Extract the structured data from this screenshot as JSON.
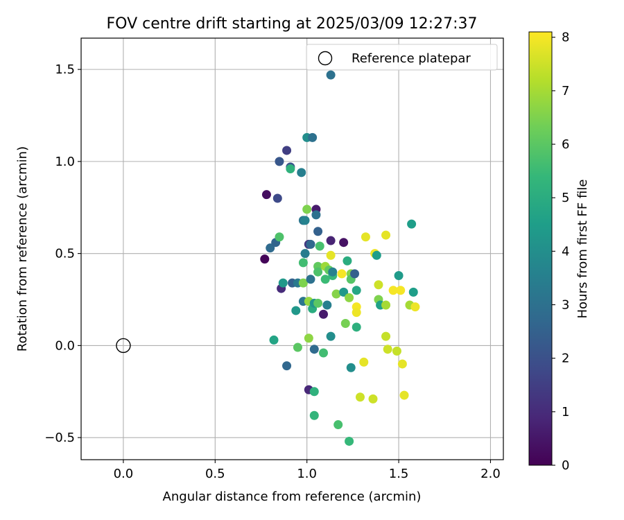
{
  "chart_data": {
    "type": "scatter",
    "title": "FOV centre drift starting at 2025/03/09 12:27:37",
    "xlabel": "Angular distance from reference (arcmin)",
    "ylabel": "Rotation from reference (arcmin)",
    "xlim": [
      -0.23,
      2.07
    ],
    "ylim": [
      -0.62,
      1.67
    ],
    "xticks": [
      0.0,
      0.5,
      1.0,
      1.5,
      2.0
    ],
    "xtick_labels": [
      "0.0",
      "0.5",
      "1.0",
      "1.5",
      "2.0"
    ],
    "yticks": [
      -0.5,
      0.0,
      0.5,
      1.0,
      1.5
    ],
    "ytick_labels": [
      "−0.5",
      "0.0",
      "0.5",
      "1.0",
      "1.5"
    ],
    "grid": true,
    "legend": {
      "position": "top-right",
      "entries": [
        "Reference platepar"
      ]
    },
    "reference_point": {
      "x": 0.0,
      "y": 0.0,
      "marker": "open-circle"
    },
    "colorbar": {
      "label": "Hours from first FF file",
      "min": 0,
      "max": 8.1,
      "ticks": [
        0,
        1,
        2,
        3,
        4,
        5,
        6,
        7,
        8
      ],
      "tick_labels": [
        "0",
        "1",
        "2",
        "3",
        "4",
        "5",
        "6",
        "7",
        "8"
      ],
      "colormap": "viridis",
      "color_stops": [
        "#440154",
        "#482878",
        "#3e4a89",
        "#31688e",
        "#26828e",
        "#1f9e89",
        "#35b779",
        "#6ece58",
        "#b5de2b",
        "#fde725"
      ]
    },
    "series": [
      {
        "points": [
          {
            "x": 0.77,
            "y": 0.47,
            "c": 0.1
          },
          {
            "x": 0.78,
            "y": 0.82,
            "c": 0.3
          },
          {
            "x": 0.84,
            "y": 0.8,
            "c": 1.8
          },
          {
            "x": 0.8,
            "y": 0.53,
            "c": 2.8
          },
          {
            "x": 0.83,
            "y": 0.56,
            "c": 2.6
          },
          {
            "x": 0.85,
            "y": 0.59,
            "c": 5.8
          },
          {
            "x": 0.86,
            "y": 0.31,
            "c": 1.0
          },
          {
            "x": 0.87,
            "y": 0.34,
            "c": 4.3
          },
          {
            "x": 0.85,
            "y": 1.0,
            "c": 2.2
          },
          {
            "x": 0.89,
            "y": 1.06,
            "c": 1.5
          },
          {
            "x": 0.91,
            "y": 0.97,
            "c": 2.1
          },
          {
            "x": 0.91,
            "y": 0.96,
            "c": 5.2
          },
          {
            "x": 0.97,
            "y": 0.94,
            "c": 3.5
          },
          {
            "x": 1.0,
            "y": 1.13,
            "c": 4.0
          },
          {
            "x": 1.03,
            "y": 1.13,
            "c": 3.0
          },
          {
            "x": 1.13,
            "y": 1.47,
            "c": 3.0
          },
          {
            "x": 0.82,
            "y": 0.03,
            "c": 4.7
          },
          {
            "x": 0.89,
            "y": -0.11,
            "c": 2.7
          },
          {
            "x": 0.92,
            "y": 0.34,
            "c": 2.5
          },
          {
            "x": 0.94,
            "y": 0.19,
            "c": 4.3
          },
          {
            "x": 0.95,
            "y": -0.01,
            "c": 6.0
          },
          {
            "x": 0.95,
            "y": 0.34,
            "c": 3.3
          },
          {
            "x": 0.98,
            "y": 0.24,
            "c": 3.2
          },
          {
            "x": 0.98,
            "y": 0.34,
            "c": 6.5
          },
          {
            "x": 0.98,
            "y": 0.45,
            "c": 5.6
          },
          {
            "x": 0.98,
            "y": 0.68,
            "c": 3.2
          },
          {
            "x": 0.99,
            "y": 0.68,
            "c": 3.6
          },
          {
            "x": 0.99,
            "y": 0.5,
            "c": 3.4
          },
          {
            "x": 1.0,
            "y": 0.74,
            "c": 6.5
          },
          {
            "x": 1.01,
            "y": 0.55,
            "c": 1.3
          },
          {
            "x": 1.01,
            "y": 0.24,
            "c": 6.8
          },
          {
            "x": 1.01,
            "y": 0.04,
            "c": 6.7
          },
          {
            "x": 1.01,
            "y": -0.24,
            "c": 0.9
          },
          {
            "x": 1.02,
            "y": 0.36,
            "c": 3.0
          },
          {
            "x": 1.02,
            "y": 0.55,
            "c": 2.7
          },
          {
            "x": 1.03,
            "y": 0.2,
            "c": 5.0
          },
          {
            "x": 1.04,
            "y": 0.23,
            "c": 4.2
          },
          {
            "x": 1.04,
            "y": -0.02,
            "c": 2.8
          },
          {
            "x": 1.04,
            "y": -0.25,
            "c": 5.2
          },
          {
            "x": 1.04,
            "y": -0.38,
            "c": 5.3
          },
          {
            "x": 1.05,
            "y": 0.74,
            "c": 0.6
          },
          {
            "x": 1.05,
            "y": 0.71,
            "c": 3.0
          },
          {
            "x": 1.06,
            "y": 0.62,
            "c": 2.5
          },
          {
            "x": 1.06,
            "y": 0.43,
            "c": 6.1
          },
          {
            "x": 1.06,
            "y": 0.4,
            "c": 5.8
          },
          {
            "x": 1.06,
            "y": 0.23,
            "c": 6.0
          },
          {
            "x": 1.07,
            "y": 0.54,
            "c": 5.7
          },
          {
            "x": 1.09,
            "y": 0.17,
            "c": 0.6
          },
          {
            "x": 1.09,
            "y": -0.04,
            "c": 5.6
          },
          {
            "x": 1.1,
            "y": 0.43,
            "c": 6.9
          },
          {
            "x": 1.1,
            "y": 0.36,
            "c": 5.5
          },
          {
            "x": 1.11,
            "y": 0.22,
            "c": 3.5
          },
          {
            "x": 1.12,
            "y": 0.41,
            "c": 6.1
          },
          {
            "x": 1.13,
            "y": 0.57,
            "c": 0.8
          },
          {
            "x": 1.13,
            "y": 0.49,
            "c": 7.8
          },
          {
            "x": 1.13,
            "y": 0.05,
            "c": 4.0
          },
          {
            "x": 1.14,
            "y": 0.38,
            "c": 5.4
          },
          {
            "x": 1.14,
            "y": 0.4,
            "c": 3.6
          },
          {
            "x": 1.16,
            "y": 0.28,
            "c": 6.6
          },
          {
            "x": 1.17,
            "y": -0.43,
            "c": 5.7
          },
          {
            "x": 1.19,
            "y": 0.39,
            "c": 8.0
          },
          {
            "x": 1.2,
            "y": 0.56,
            "c": 0.4
          },
          {
            "x": 1.2,
            "y": 0.29,
            "c": 4.3
          },
          {
            "x": 1.21,
            "y": 0.12,
            "c": 6.4
          },
          {
            "x": 1.22,
            "y": 0.46,
            "c": 5.0
          },
          {
            "x": 1.23,
            "y": 0.26,
            "c": 6.7
          },
          {
            "x": 1.23,
            "y": -0.52,
            "c": 5.4
          },
          {
            "x": 1.24,
            "y": 0.39,
            "c": 6.6
          },
          {
            "x": 1.24,
            "y": 0.36,
            "c": 5.9
          },
          {
            "x": 1.24,
            "y": -0.12,
            "c": 4.0
          },
          {
            "x": 1.26,
            "y": 0.39,
            "c": 2.5
          },
          {
            "x": 1.27,
            "y": 0.3,
            "c": 4.8
          },
          {
            "x": 1.27,
            "y": 0.1,
            "c": 5.1
          },
          {
            "x": 1.27,
            "y": 0.21,
            "c": 8.0
          },
          {
            "x": 1.27,
            "y": 0.18,
            "c": 7.9
          },
          {
            "x": 1.29,
            "y": -0.28,
            "c": 7.5
          },
          {
            "x": 1.31,
            "y": -0.09,
            "c": 7.8
          },
          {
            "x": 1.32,
            "y": 0.59,
            "c": 7.8
          },
          {
            "x": 1.36,
            "y": -0.29,
            "c": 7.5
          },
          {
            "x": 1.37,
            "y": 0.5,
            "c": 7.9
          },
          {
            "x": 1.38,
            "y": 0.49,
            "c": 4.5
          },
          {
            "x": 1.39,
            "y": 0.33,
            "c": 7.5
          },
          {
            "x": 1.39,
            "y": 0.25,
            "c": 6.5
          },
          {
            "x": 1.4,
            "y": 0.22,
            "c": 4.6
          },
          {
            "x": 1.43,
            "y": 0.6,
            "c": 7.8
          },
          {
            "x": 1.43,
            "y": 0.22,
            "c": 7.0
          },
          {
            "x": 1.43,
            "y": 0.05,
            "c": 7.4
          },
          {
            "x": 1.44,
            "y": -0.02,
            "c": 7.5
          },
          {
            "x": 1.47,
            "y": 0.3,
            "c": 8.0
          },
          {
            "x": 1.49,
            "y": -0.03,
            "c": 7.4
          },
          {
            "x": 1.5,
            "y": 0.38,
            "c": 4.4
          },
          {
            "x": 1.51,
            "y": 0.3,
            "c": 8.0
          },
          {
            "x": 1.52,
            "y": -0.1,
            "c": 7.8
          },
          {
            "x": 1.53,
            "y": -0.27,
            "c": 7.8
          },
          {
            "x": 1.56,
            "y": 0.22,
            "c": 7.0
          },
          {
            "x": 1.57,
            "y": 0.66,
            "c": 4.5
          },
          {
            "x": 1.58,
            "y": 0.29,
            "c": 4.5
          },
          {
            "x": 1.59,
            "y": 0.21,
            "c": 7.9
          }
        ]
      }
    ]
  }
}
